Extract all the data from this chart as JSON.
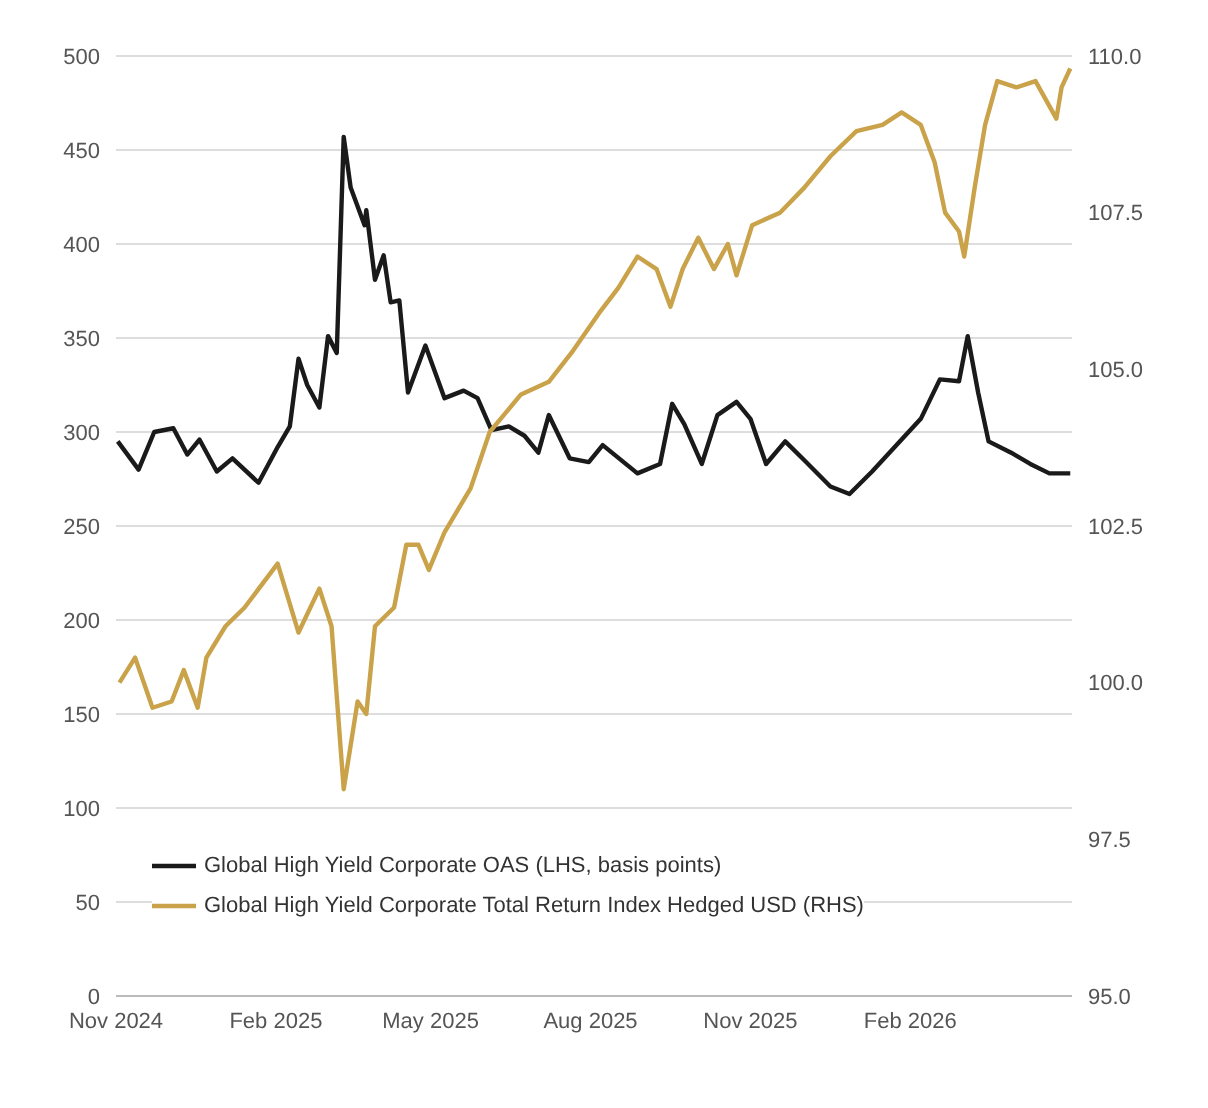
{
  "chart_data": {
    "type": "line",
    "xlim": [
      "2024-11-01",
      "2026-05-05"
    ],
    "xticks": [
      {
        "value": "2024-11-01",
        "label": "Nov 2024"
      },
      {
        "value": "2025-02-01",
        "label": "Feb 2025"
      },
      {
        "value": "2025-05-01",
        "label": "May 2025"
      },
      {
        "value": "2025-08-01",
        "label": "Aug 2025"
      },
      {
        "value": "2025-11-01",
        "label": "Nov 2025"
      },
      {
        "value": "2026-02-01",
        "label": "Feb 2026"
      }
    ],
    "ylim": [
      0,
      500
    ],
    "yticks": [
      0,
      50,
      100,
      150,
      200,
      250,
      300,
      350,
      400,
      450,
      500
    ],
    "y2lim": [
      95,
      110
    ],
    "y2ticks": [
      {
        "value": 95,
        "label": "95.0"
      },
      {
        "value": 97.5,
        "label": "97.5"
      },
      {
        "value": 100,
        "label": "100.0"
      },
      {
        "value": 102.5,
        "label": "102.5"
      },
      {
        "value": 105,
        "label": "105.0"
      },
      {
        "value": 107.5,
        "label": "107.5"
      },
      {
        "value": 110,
        "label": "110.0"
      }
    ],
    "grid": "y",
    "legend": "bottom left",
    "marker": "none",
    "line_style": "solid",
    "series": [
      {
        "name": "Global High Yield Corporate OAS (LHS, basis points)",
        "color": "#1a1a1a",
        "x": [
          "2024-11-02",
          "2024-11-14",
          "2024-11-23",
          "2024-12-04",
          "2024-12-12",
          "2024-12-19",
          "2024-12-29",
          "2025-01-07",
          "2025-01-22",
          "2025-02-02",
          "2025-02-09",
          "2025-02-14",
          "2025-02-19",
          "2025-02-26",
          "2025-03-03",
          "2025-03-08",
          "2025-03-12",
          "2025-03-16",
          "2025-03-24",
          "2025-03-25",
          "2025-03-30",
          "2025-04-04",
          "2025-04-08",
          "2025-04-13",
          "2025-04-18",
          "2025-04-28",
          "2025-05-09",
          "2025-05-20",
          "2025-05-28",
          "2025-06-05",
          "2025-06-15",
          "2025-06-24",
          "2025-07-02",
          "2025-07-08",
          "2025-07-20",
          "2025-07-31",
          "2025-08-08",
          "2025-08-28",
          "2025-09-10",
          "2025-09-17",
          "2025-09-24",
          "2025-10-04",
          "2025-10-13",
          "2025-10-24",
          "2025-11-01",
          "2025-11-10",
          "2025-11-21",
          "2025-12-02",
          "2025-12-17",
          "2025-12-28",
          "2026-01-10",
          "2026-01-23",
          "2026-02-07",
          "2026-02-18",
          "2026-03-01",
          "2026-03-06",
          "2026-03-12",
          "2026-03-18",
          "2026-03-31",
          "2026-04-11",
          "2026-04-22",
          "2026-05-04"
        ],
        "values": [
          295,
          280,
          300,
          302,
          288,
          296,
          279,
          286,
          273,
          292,
          303,
          339,
          325,
          313,
          351,
          342,
          457,
          430,
          410,
          418,
          381,
          394,
          369,
          370,
          321,
          346,
          318,
          322,
          318,
          301,
          303,
          298,
          289,
          309,
          286,
          284,
          293,
          278,
          283,
          315,
          304,
          283,
          309,
          316,
          307,
          283,
          295,
          285,
          271,
          267,
          279,
          292,
          307,
          328,
          327,
          351,
          321,
          295,
          289,
          283,
          278,
          278
        ]
      },
      {
        "name": "Global High Yield Corporate Total Return Index Hedged USD (RHS)",
        "color": "#c9a24a",
        "axis": "y2",
        "x": [
          "2024-11-03",
          "2024-11-12",
          "2024-11-22",
          "2024-12-03",
          "2024-12-10",
          "2024-12-18",
          "2024-12-23",
          "2025-01-03",
          "2025-01-14",
          "2025-02-02",
          "2025-02-14",
          "2025-02-26",
          "2025-03-05",
          "2025-03-12",
          "2025-03-20",
          "2025-03-25",
          "2025-03-30",
          "2025-04-10",
          "2025-04-17",
          "2025-04-24",
          "2025-04-30",
          "2025-05-09",
          "2025-05-24",
          "2025-06-04",
          "2025-06-22",
          "2025-07-08",
          "2025-07-22",
          "2025-08-06",
          "2025-08-17",
          "2025-08-28",
          "2025-09-08",
          "2025-09-16",
          "2025-09-23",
          "2025-10-02",
          "2025-10-11",
          "2025-10-19",
          "2025-10-24",
          "2025-11-02",
          "2025-11-18",
          "2025-12-02",
          "2025-12-17",
          "2026-01-01",
          "2026-01-16",
          "2026-01-27",
          "2026-02-07",
          "2026-02-15",
          "2026-02-21",
          "2026-03-01",
          "2026-03-04",
          "2026-03-10",
          "2026-03-16",
          "2026-03-23",
          "2026-04-03",
          "2026-04-14",
          "2026-04-26",
          "2026-04-29",
          "2026-05-04"
        ],
        "values": [
          100.0,
          100.4,
          99.6,
          99.7,
          100.2,
          99.6,
          100.4,
          100.9,
          101.2,
          101.9,
          100.8,
          101.5,
          100.9,
          98.3,
          99.7,
          99.5,
          100.9,
          101.2,
          102.2,
          102.2,
          101.8,
          102.4,
          103.1,
          104.0,
          104.6,
          104.8,
          105.3,
          105.9,
          106.3,
          106.8,
          106.6,
          106.0,
          106.6,
          107.1,
          106.6,
          107.0,
          106.5,
          107.3,
          107.5,
          107.9,
          108.4,
          108.8,
          108.9,
          109.1,
          108.9,
          108.3,
          107.5,
          107.2,
          106.8,
          107.9,
          108.9,
          109.6,
          109.5,
          109.6,
          109.0,
          109.5,
          109.8
        ]
      }
    ]
  }
}
